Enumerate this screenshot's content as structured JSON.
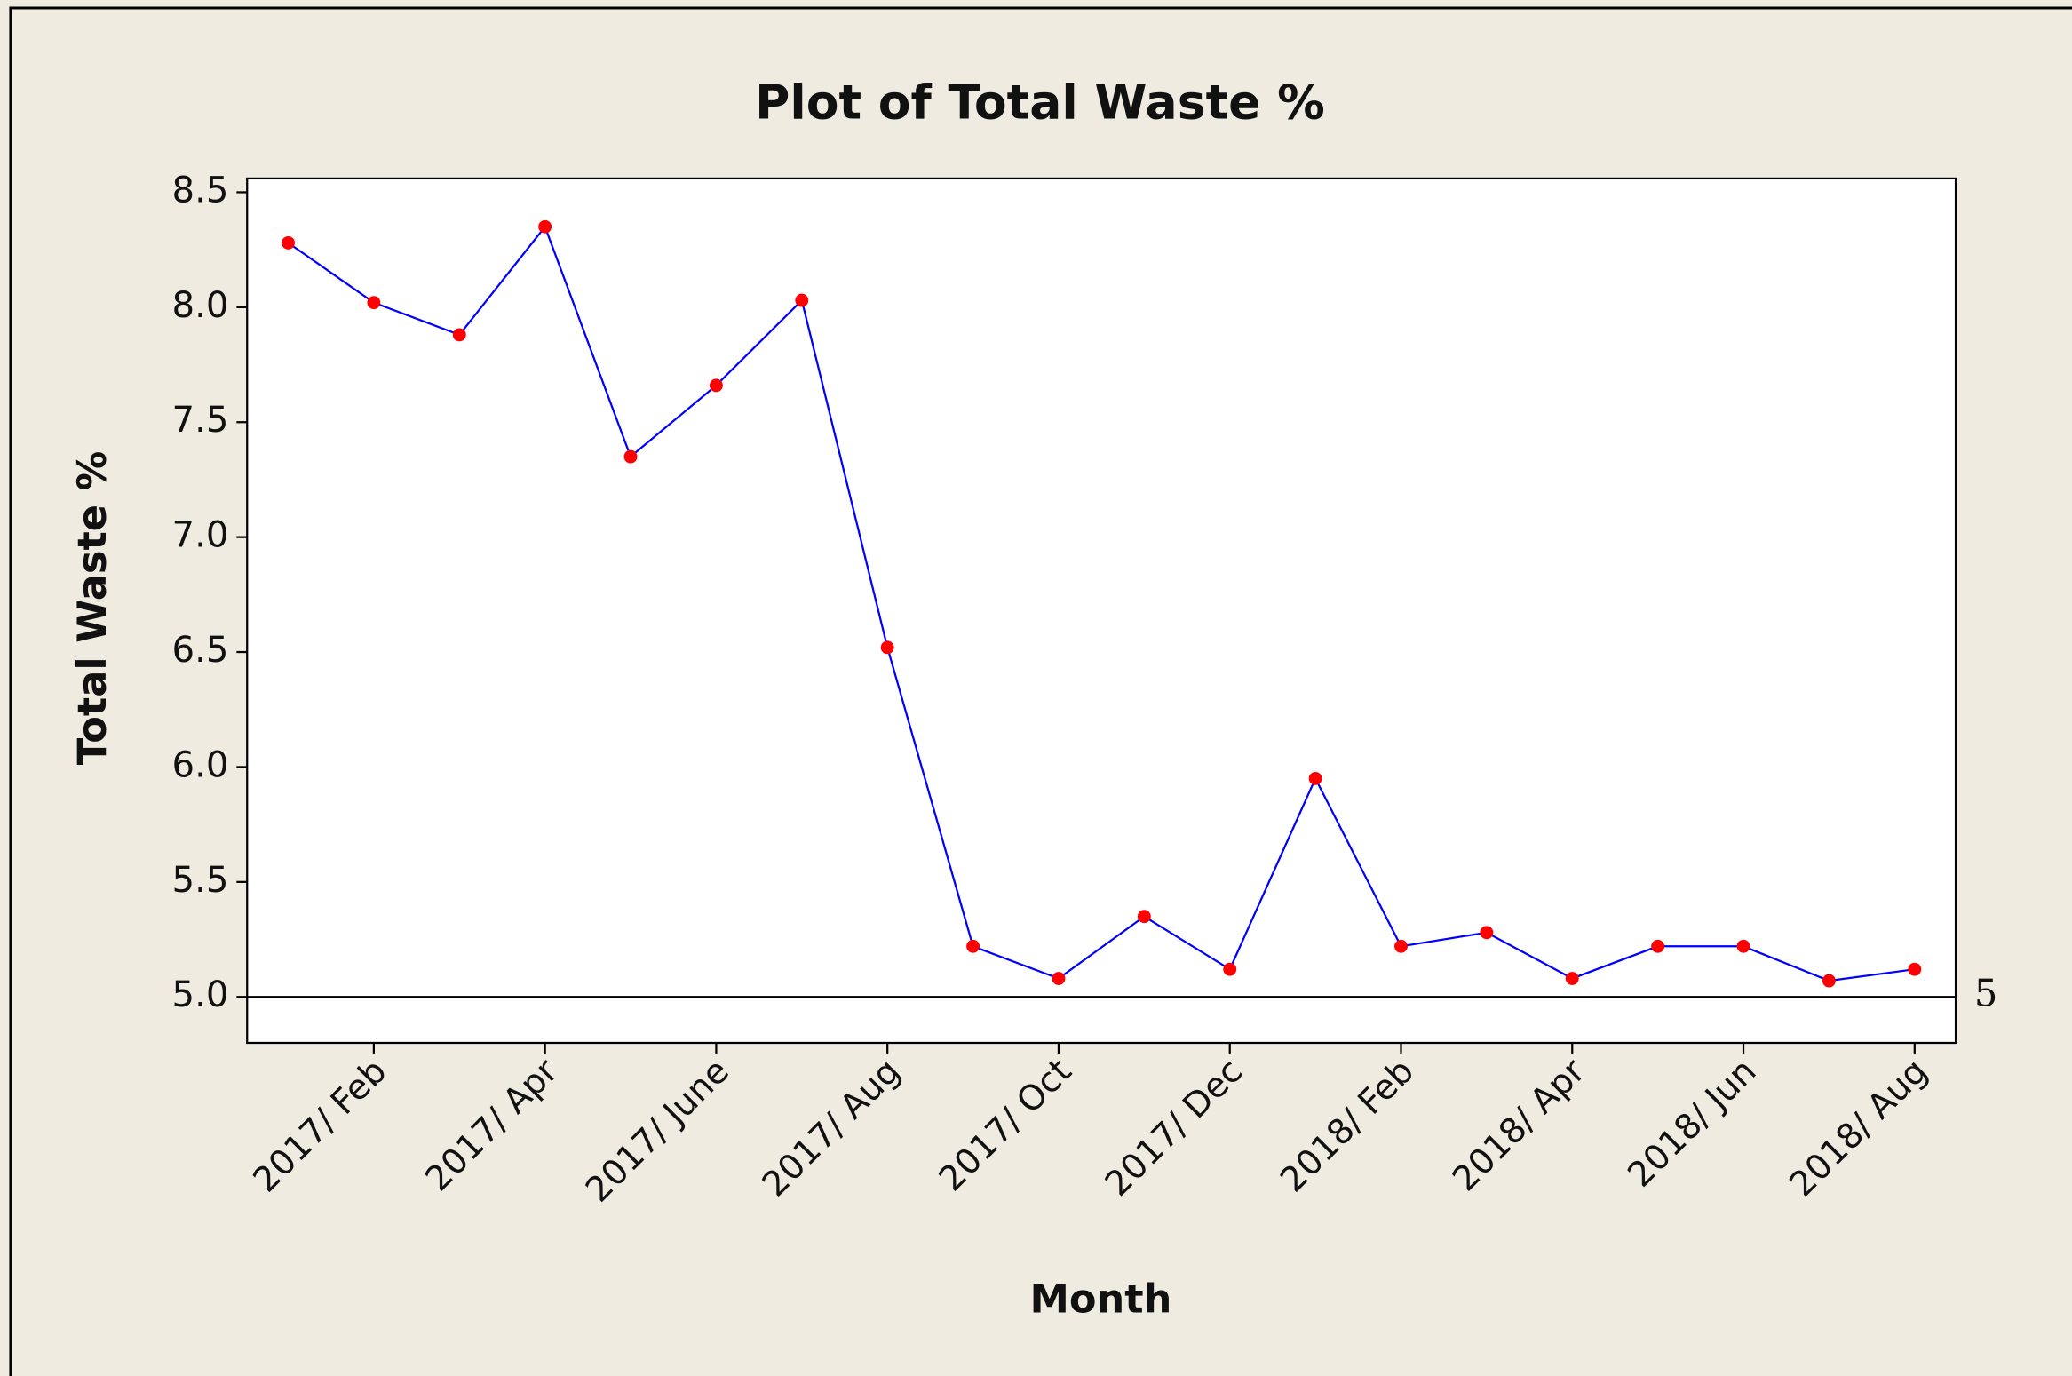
{
  "chart_data": {
    "type": "line",
    "title": "Plot of Total Waste %",
    "x_label": "Month",
    "y_label": "Total Waste %",
    "categories": [
      null,
      "2017/ Feb",
      null,
      "2017/ Apr",
      null,
      "2017/ June",
      null,
      "2017/ Aug",
      null,
      "2017/ Oct",
      null,
      "2017/ Dec",
      null,
      "2018/ Feb",
      null,
      "2018/ Apr",
      null,
      "2018/ Jun",
      null,
      "2018/ Aug"
    ],
    "series": [
      {
        "name": "Total Waste %",
        "color": "#0000ff",
        "marker_color": "#ff0000",
        "values": [
          8.28,
          8.02,
          7.88,
          8.35,
          7.35,
          7.66,
          8.03,
          6.52,
          5.22,
          5.08,
          5.35,
          5.12,
          5.95,
          5.22,
          5.28,
          5.08,
          5.22,
          5.22,
          5.07,
          5.12
        ]
      }
    ],
    "ylim": [
      4.8,
      8.56
    ],
    "yticks": [
      {
        "value": 5.0,
        "label": "5.0"
      },
      {
        "value": 5.5,
        "label": "5.5"
      },
      {
        "value": 6.0,
        "label": "6.0"
      },
      {
        "value": 6.5,
        "label": "6.5"
      },
      {
        "value": 7.0,
        "label": "7.0"
      },
      {
        "value": 7.5,
        "label": "7.5"
      },
      {
        "value": 8.0,
        "label": "8.0"
      },
      {
        "value": 8.5,
        "label": "8.5"
      }
    ],
    "reference_line": 5,
    "grid": false
  }
}
